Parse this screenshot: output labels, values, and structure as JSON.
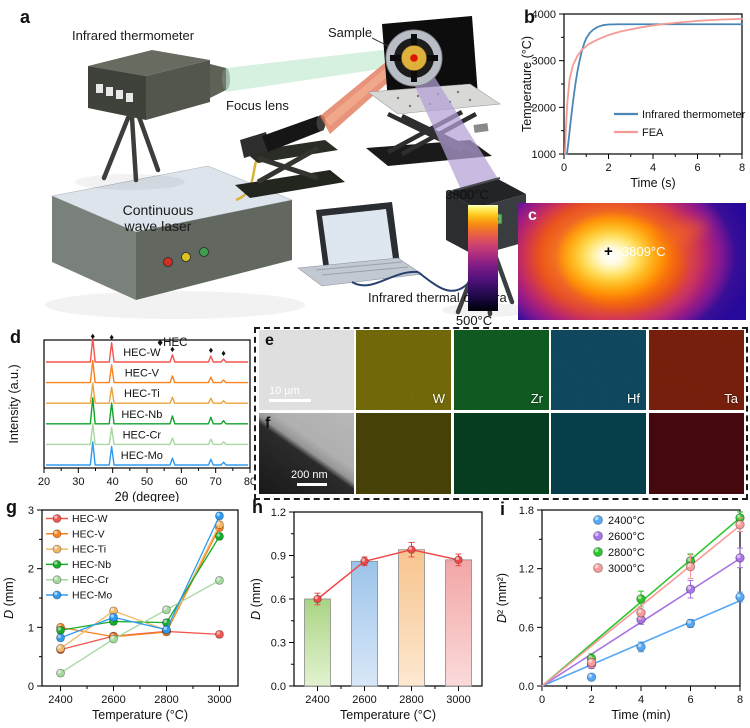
{
  "figure": {
    "panel_labels": {
      "a": "a",
      "b": "b",
      "c": "c",
      "d": "d",
      "e": "e",
      "f": "f",
      "g": "g",
      "h": "h",
      "i": "i"
    }
  },
  "panel_a": {
    "labels": {
      "infrared_thermometer": "Infrared thermometer",
      "sample": "Sample",
      "focus_lens": "Focus lens",
      "cw_laser_line1": "Continuous",
      "cw_laser_line2": "wave laser",
      "thermal_camera": "Infrared thermal camera"
    }
  },
  "panel_c": {
    "colorbar_max": "3800°C",
    "colorbar_min": "500°C",
    "marker": "+",
    "spot_label": "3809°C"
  },
  "panel_e": {
    "sem_color": "#c9c9c9",
    "scale_bar": "10 µm",
    "elements": [
      {
        "label": "W",
        "color": "#cfc011"
      },
      {
        "label": "Zr",
        "color": "#1ea43b"
      },
      {
        "label": "Hf",
        "color": "#1d84ad"
      },
      {
        "label": "Ta",
        "color": "#d63a17"
      }
    ]
  },
  "panel_f": {
    "scale_bar": "200 nm",
    "colors": [
      "#8e860f",
      "#0d7c3e",
      "#0e7e95",
      "#8e1120"
    ]
  },
  "chart_data": [
    {
      "panel": "b",
      "type": "line",
      "xlabel": "Time (s)",
      "ylabel": "Temperature (°C)",
      "xlim": [
        0,
        8
      ],
      "ylim": [
        1000,
        4000
      ],
      "xticks": [
        0,
        2,
        4,
        6,
        8
      ],
      "yticks": [
        1000,
        2000,
        3000,
        4000
      ],
      "legend_position": "bottom-right",
      "series": [
        {
          "name": "Infrared thermometer",
          "color": "#4a86b8",
          "x": [
            0.13,
            0.2,
            0.3,
            0.4,
            0.5,
            0.6,
            0.7,
            0.8,
            0.9,
            1.0,
            1.15,
            1.3,
            1.5,
            1.75,
            2.0,
            2.5,
            3,
            4,
            8
          ],
          "y": [
            1000,
            1260,
            1700,
            2100,
            2460,
            2760,
            3000,
            3200,
            3360,
            3480,
            3590,
            3660,
            3720,
            3760,
            3775,
            3780,
            3780,
            3780,
            3780
          ]
        },
        {
          "name": "FEA",
          "color": "#f59b95",
          "x": [
            0.04,
            0.08,
            0.15,
            0.25,
            0.4,
            0.6,
            0.8,
            1.1,
            1.5,
            2.0,
            2.5,
            3.0,
            3.5,
            4.0,
            4.5,
            5.0,
            5.5,
            6.0,
            7.0,
            8.0
          ],
          "y": [
            1000,
            1500,
            2100,
            2600,
            2900,
            3100,
            3230,
            3350,
            3450,
            3550,
            3620,
            3670,
            3715,
            3755,
            3785,
            3810,
            3832,
            3852,
            3880,
            3895
          ]
        }
      ]
    },
    {
      "panel": "d",
      "type": "line",
      "xlabel": "2θ (degree)",
      "ylabel": "Intensity (a.u.)",
      "xlim": [
        20,
        80
      ],
      "xticks": [
        20,
        30,
        40,
        50,
        60,
        70,
        80
      ],
      "annotation": "♦HEC",
      "peak_positions": [
        34.2,
        39.7,
        57.4,
        68.6,
        72.3
      ],
      "peak_rel_heights": [
        1.0,
        0.8,
        0.3,
        0.25,
        0.12
      ],
      "series": [
        {
          "name": "HEC-W",
          "color": "#f2564f",
          "amp": 24
        },
        {
          "name": "HEC-V",
          "color": "#f8821e",
          "amp": 22
        },
        {
          "name": "HEC-Ti",
          "color": "#e8a33d",
          "amp": 20
        },
        {
          "name": "HEC-Nb",
          "color": "#10a32c",
          "amp": 26
        },
        {
          "name": "HEC-Cr",
          "color": "#a6d8a0",
          "amp": 21
        },
        {
          "name": "HEC-Mo",
          "color": "#2e9bf2",
          "amp": 23
        }
      ]
    },
    {
      "panel": "g",
      "type": "line-scatter",
      "xlabel": "Temperature (°C)",
      "ylabel": "D (mm)",
      "categories": [
        2400,
        2600,
        2800,
        3000
      ],
      "ylim": [
        0,
        3
      ],
      "yticks": [
        0,
        1,
        2,
        3
      ],
      "error": 0.05,
      "series": [
        {
          "name": "HEC-W",
          "color": "#f2564f",
          "values": [
            0.62,
            0.85,
            0.93,
            0.88
          ]
        },
        {
          "name": "HEC-V",
          "color": "#f8821e",
          "values": [
            1.0,
            0.84,
            0.92,
            2.7
          ]
        },
        {
          "name": "HEC-Ti",
          "color": "#f0b966",
          "values": [
            0.64,
            1.28,
            0.95,
            2.75
          ]
        },
        {
          "name": "HEC-Nb",
          "color": "#17ad2c",
          "values": [
            0.95,
            1.1,
            1.08,
            2.55
          ]
        },
        {
          "name": "HEC-Cr",
          "color": "#a6d8a0",
          "values": [
            0.22,
            0.8,
            1.3,
            1.8
          ]
        },
        {
          "name": "HEC-Mo",
          "color": "#2e9bf2",
          "values": [
            0.82,
            1.17,
            0.96,
            2.9
          ]
        }
      ]
    },
    {
      "panel": "h",
      "type": "bar",
      "xlabel": "Temperature (°C)",
      "ylabel": "D (mm)",
      "categories": [
        2400,
        2600,
        2800,
        3000
      ],
      "ylim": [
        0,
        1.2
      ],
      "yticks": [
        0,
        0.3,
        0.6,
        0.9,
        1.2
      ],
      "ytick_labels": [
        "0.0",
        "0.3",
        "0.6",
        "0.9",
        "1.2"
      ],
      "values": [
        0.6,
        0.86,
        0.94,
        0.87
      ],
      "errors": [
        0.04,
        0.03,
        0.05,
        0.04
      ],
      "bar_colors_top": [
        "#a9d483",
        "#9cc3ea",
        "#f7c48e",
        "#f2a6a6"
      ],
      "bar_colors_bottom": [
        "#e3f2d0",
        "#d9e8f8",
        "#fde8d0",
        "#fbdada"
      ],
      "line_color": "#f04848"
    },
    {
      "panel": "i",
      "type": "scatter-fit",
      "xlabel": "Time (min)",
      "ylabel": "D² (mm²)",
      "xlim": [
        0,
        8
      ],
      "ylim": [
        0,
        1.8
      ],
      "xticks": [
        0,
        2,
        4,
        6,
        8
      ],
      "yticks": [
        0,
        0.6,
        1.2,
        1.8
      ],
      "ytick_labels": [
        "0.0",
        "0.6",
        "1.2",
        "1.8"
      ],
      "series": [
        {
          "name": "2400°C",
          "color": "#55a8f5",
          "x": [
            2,
            4,
            6,
            8
          ],
          "y": [
            0.09,
            0.4,
            0.64,
            0.91
          ],
          "err": [
            0.03,
            0.05,
            0.04,
            0.05
          ],
          "fit_slope": 0.109
        },
        {
          "name": "2600°C",
          "color": "#a873e6",
          "x": [
            2,
            4,
            6,
            8
          ],
          "y": [
            0.22,
            0.68,
            0.99,
            1.31
          ],
          "err": [
            0.04,
            0.05,
            0.09,
            0.1
          ],
          "fit_slope": 0.163
        },
        {
          "name": "2800°C",
          "color": "#2bc52b",
          "x": [
            2,
            4,
            6,
            8
          ],
          "y": [
            0.28,
            0.89,
            1.28,
            1.72
          ],
          "err": [
            0.05,
            0.08,
            0.07,
            0.06
          ],
          "fit_slope": 0.215
        },
        {
          "name": "3000°C",
          "color": "#f89b9b",
          "x": [
            2,
            4,
            6,
            8
          ],
          "y": [
            0.24,
            0.75,
            1.22,
            1.65
          ],
          "err": [
            0.05,
            0.06,
            0.12,
            0.07
          ],
          "fit_slope": 0.205
        }
      ]
    }
  ]
}
